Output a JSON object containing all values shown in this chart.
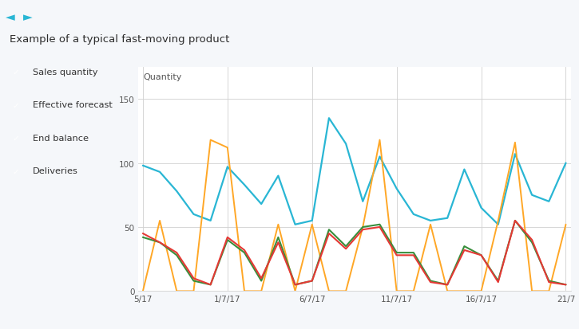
{
  "title": "Example of a typical fast-moving product",
  "quantity_label": "Quantity",
  "xlabels_display": [
    "5/17",
    "1/7/17",
    "6/7/17",
    "11/7/17",
    "16/7/17",
    "21/7"
  ],
  "xtick_positions": [
    0,
    5,
    10,
    15,
    20,
    25
  ],
  "ylim": [
    0,
    175
  ],
  "yticks": [
    0,
    50,
    100,
    150
  ],
  "grid_color": "#d0d0d0",
  "series": {
    "end_balance": {
      "label": "End balance",
      "color": "#29b6d4",
      "linewidth": 1.6,
      "values": [
        98,
        93,
        78,
        60,
        55,
        97,
        83,
        68,
        90,
        52,
        55,
        135,
        115,
        70,
        105,
        80,
        60,
        55,
        57,
        95,
        65,
        52,
        107,
        75,
        70,
        100
      ]
    },
    "deliveries": {
      "label": "Deliveries",
      "color": "#ffa726",
      "linewidth": 1.4,
      "values": [
        0,
        55,
        0,
        0,
        118,
        112,
        0,
        0,
        52,
        0,
        52,
        0,
        0,
        50,
        118,
        0,
        0,
        52,
        0,
        0,
        0,
        55,
        116,
        0,
        0,
        52
      ]
    },
    "effective_forecast": {
      "label": "Effective forecast",
      "color": "#388e3c",
      "linewidth": 1.5,
      "values": [
        42,
        38,
        28,
        8,
        5,
        40,
        30,
        8,
        42,
        5,
        8,
        48,
        35,
        50,
        52,
        30,
        30,
        8,
        5,
        35,
        28,
        8,
        55,
        38,
        8,
        5
      ]
    },
    "sales_quantity": {
      "label": "Sales quantity",
      "color": "#e53935",
      "linewidth": 1.5,
      "values": [
        45,
        38,
        30,
        10,
        5,
        42,
        32,
        10,
        38,
        5,
        8,
        45,
        33,
        48,
        50,
        28,
        28,
        7,
        5,
        32,
        28,
        7,
        55,
        40,
        7,
        5
      ]
    }
  },
  "legend_items": [
    {
      "label": "Sales quantity",
      "color": "#e53935"
    },
    {
      "label": "Effective forecast",
      "color": "#388e3c"
    },
    {
      "label": "End balance",
      "color": "#29b6d4"
    },
    {
      "label": "Deliveries",
      "color": "#ffa726"
    }
  ],
  "checkbox_color": "#29b6d4",
  "fig_bg": "#f5f7fa",
  "header_bg": "#e8edf2",
  "chart_bg": "#ffffff",
  "nav_arrow_color": "#29b6d4",
  "scroll_color": "#29b6d4",
  "scroll_bg": "#dce3ea"
}
